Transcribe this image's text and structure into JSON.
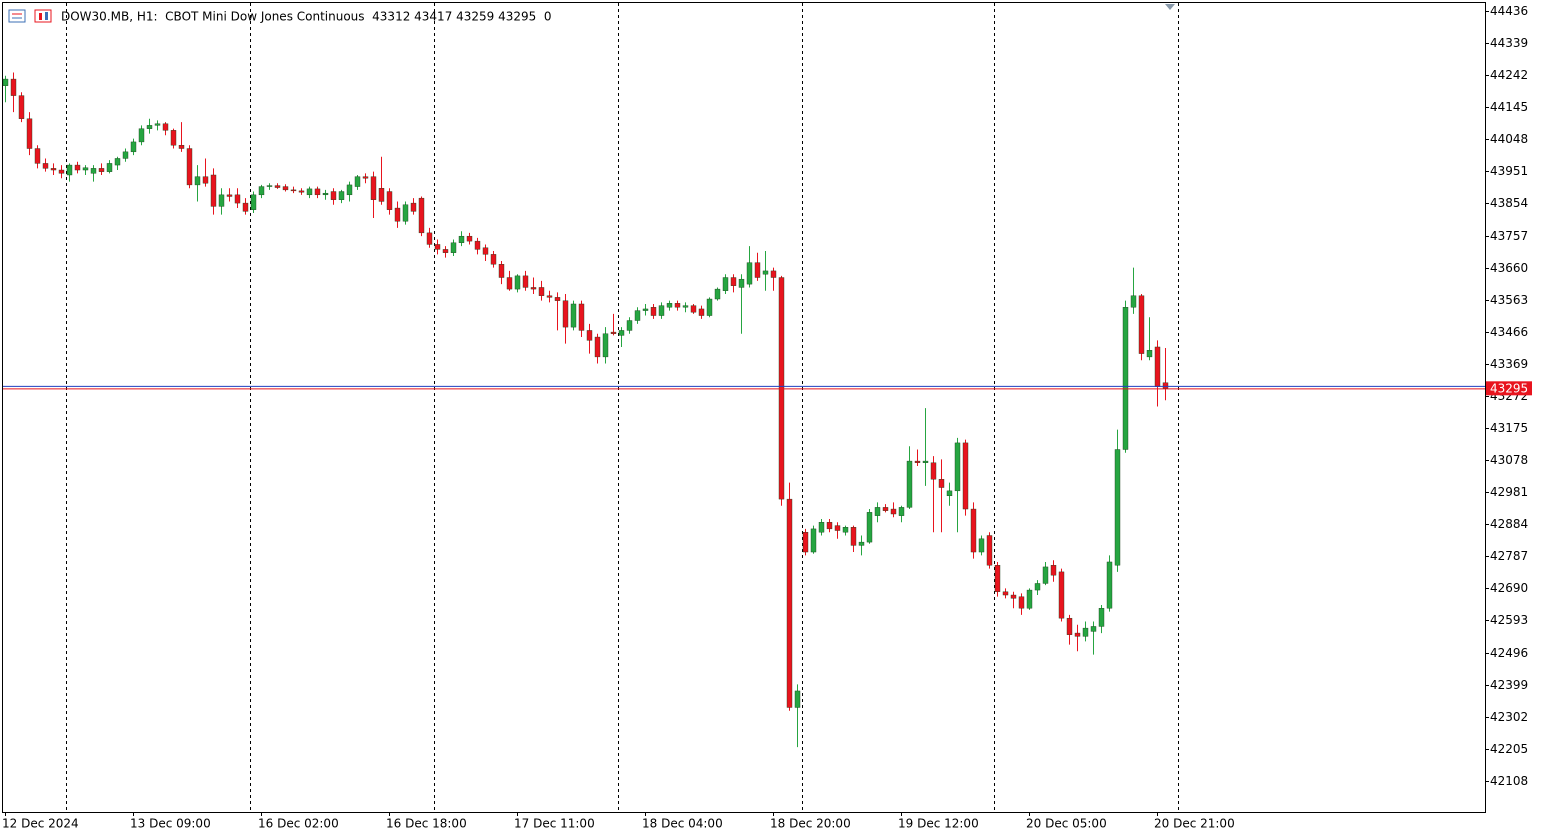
{
  "chart_data": {
    "type": "candlestick",
    "header": "DOW30.MB, H1:  CBOT Mini Dow Jones Continuous  43312 43417 43259 43295  0",
    "current_price": 43295,
    "up_color": "#26a541",
    "down_color": "#e8141e",
    "ylim": [
      42014,
      44460
    ],
    "yticks": [
      44436,
      44339,
      44242,
      44145,
      44048,
      43951,
      43854,
      43757,
      43660,
      43563,
      43466,
      43369,
      43272,
      43175,
      43078,
      42981,
      42884,
      42787,
      42690,
      42593,
      42496,
      42399,
      42302,
      42205,
      42108
    ],
    "categories": [
      "12 Dec 2024",
      null,
      null,
      null,
      null,
      null,
      null,
      null,
      null,
      null,
      null,
      null,
      null,
      null,
      null,
      null,
      "13 Dec 09:00",
      null,
      null,
      null,
      null,
      null,
      null,
      null,
      null,
      null,
      null,
      null,
      null,
      null,
      null,
      null,
      "16 Dec 02:00",
      null,
      null,
      null,
      null,
      null,
      null,
      null,
      null,
      null,
      null,
      null,
      null,
      null,
      null,
      null,
      "16 Dec 18:00",
      null,
      null,
      null,
      null,
      null,
      null,
      null,
      null,
      null,
      null,
      null,
      null,
      null,
      null,
      null,
      "17 Dec 11:00",
      null,
      null,
      null,
      null,
      null,
      null,
      null,
      null,
      null,
      null,
      null,
      null,
      null,
      null,
      null,
      "18 Dec 04:00",
      null,
      null,
      null,
      null,
      null,
      null,
      null,
      null,
      null,
      null,
      null,
      null,
      null,
      null,
      null,
      "18 Dec 20:00",
      null,
      null,
      null,
      null,
      null,
      null,
      null,
      null,
      null,
      null,
      null,
      null,
      null,
      null,
      null,
      "19 Dec 12:00",
      null,
      null,
      null,
      null,
      null,
      null,
      null,
      null,
      null,
      null,
      null,
      null,
      null,
      null,
      null,
      "20 Dec 05:00",
      null,
      null,
      null,
      null,
      null,
      null,
      null,
      null,
      null,
      null,
      null,
      null,
      null,
      null,
      null,
      "20 Dec 21:00",
      null
    ],
    "open": [
      44210,
      44230,
      44180,
      44110,
      44020,
      43975,
      43960,
      43955,
      43940,
      43970,
      43955,
      43945,
      43960,
      43950,
      43970,
      43990,
      44010,
      44040,
      44080,
      44090,
      44095,
      44075,
      44030,
      44020,
      43910,
      43935,
      43940,
      43845,
      43880,
      43880,
      43855,
      43835,
      43880,
      43905,
      43908,
      43905,
      43895,
      43892,
      43880,
      43898,
      43880,
      43890,
      43865,
      43880,
      43905,
      43935,
      43935,
      43900,
      43890,
      43840,
      43800,
      43855,
      43870,
      43765,
      43730,
      43715,
      43705,
      43735,
      43755,
      43740,
      43720,
      43700,
      43670,
      43630,
      43595,
      43635,
      43600,
      43600,
      43575,
      43570,
      43560,
      43480,
      43550,
      43470,
      43450,
      43390,
      43465,
      43455,
      43470,
      43500,
      43530,
      43540,
      43515,
      43540,
      43552,
      43540,
      43545,
      43535,
      43515,
      43565,
      43590,
      43630,
      43600,
      43610,
      43675,
      43640,
      43650,
      43630,
      42960,
      42330,
      42860,
      42800,
      42860,
      42890,
      42880,
      42860,
      42875,
      42820,
      42830,
      42910,
      42935,
      42930,
      42910,
      42935,
      43075,
      43070,
      43070,
      43020,
      42970,
      42985,
      43130,
      42930,
      42800,
      42850,
      42760,
      42680,
      42670,
      42665,
      42630,
      42685,
      42705,
      42760,
      42740,
      42600,
      42555,
      42545,
      42560,
      42575,
      42630,
      42760,
      43110,
      43540,
      43575,
      43390,
      43420,
      43312
    ],
    "high": [
      44240,
      44250,
      44190,
      44130,
      44030,
      43990,
      43975,
      43970,
      43975,
      43980,
      43970,
      43970,
      43975,
      43985,
      43995,
      44020,
      44050,
      44090,
      44110,
      44105,
      44100,
      44080,
      44100,
      44030,
      43970,
      43990,
      43960,
      43900,
      43900,
      43900,
      43870,
      43890,
      43910,
      43915,
      43915,
      43912,
      43905,
      43900,
      43905,
      43905,
      43895,
      43900,
      43895,
      43920,
      43940,
      43945,
      43950,
      43995,
      43900,
      43860,
      43860,
      43870,
      43875,
      43780,
      43745,
      43725,
      43745,
      43770,
      43765,
      43750,
      43730,
      43710,
      43680,
      43650,
      43640,
      43650,
      43630,
      43620,
      43590,
      43585,
      43580,
      43560,
      43560,
      43490,
      43460,
      43480,
      43520,
      43480,
      43510,
      43540,
      43550,
      43550,
      43555,
      43560,
      43560,
      43555,
      43550,
      43545,
      43570,
      43600,
      43640,
      43640,
      43640,
      43725,
      43705,
      43710,
      43660,
      43635,
      43010,
      42400,
      42870,
      42880,
      42900,
      42900,
      42890,
      42880,
      42880,
      42850,
      42930,
      42950,
      42945,
      42950,
      42940,
      43120,
      43110,
      43235,
      43090,
      43080,
      43010,
      43145,
      43140,
      42950,
      42850,
      42860,
      42770,
      42690,
      42680,
      42675,
      42690,
      42715,
      42770,
      42775,
      42750,
      42610,
      42580,
      42590,
      42590,
      42640,
      42790,
      43170,
      43560,
      43660,
      43580,
      43510,
      43440,
      43417
    ],
    "low": [
      44160,
      44130,
      44100,
      44000,
      43960,
      43950,
      43940,
      43930,
      43920,
      43945,
      43940,
      43920,
      43940,
      43945,
      43955,
      43980,
      44000,
      44030,
      44065,
      44075,
      44060,
      44020,
      44010,
      43900,
      43860,
      43905,
      43820,
      43820,
      43860,
      43840,
      43820,
      43825,
      43870,
      43895,
      43898,
      43890,
      43885,
      43880,
      43870,
      43870,
      43865,
      43850,
      43855,
      43860,
      43895,
      43915,
      43810,
      43850,
      43820,
      43780,
      43790,
      43820,
      43755,
      43720,
      43700,
      43690,
      43695,
      43725,
      43730,
      43700,
      43680,
      43660,
      43610,
      43590,
      43585,
      43590,
      43580,
      43560,
      43555,
      43470,
      43430,
      43470,
      43450,
      43400,
      43370,
      43370,
      43455,
      43420,
      43460,
      43490,
      43515,
      43505,
      43505,
      43530,
      43530,
      43525,
      43520,
      43505,
      43510,
      43560,
      43580,
      43585,
      43460,
      43600,
      43620,
      43590,
      43590,
      42940,
      42320,
      42210,
      42790,
      42795,
      42850,
      42860,
      42840,
      42850,
      42800,
      42790,
      42825,
      42890,
      42920,
      42905,
      42890,
      42930,
      43060,
      43000,
      42860,
      42860,
      42940,
      42860,
      42910,
      42780,
      42790,
      42750,
      42665,
      42660,
      42630,
      42610,
      42625,
      42670,
      42700,
      42710,
      42590,
      42520,
      42500,
      42530,
      42490,
      42555,
      42620,
      42740,
      43100,
      43520,
      43380,
      43380,
      43240,
      43259
    ],
    "close": [
      44230,
      44180,
      44110,
      44020,
      43975,
      43960,
      43955,
      43945,
      43970,
      43955,
      43962,
      43960,
      43950,
      43975,
      43990,
      44010,
      44040,
      44080,
      44090,
      44095,
      44075,
      44030,
      44020,
      43910,
      43935,
      43915,
      43845,
      43880,
      43875,
      43855,
      43830,
      43880,
      43905,
      43908,
      43902,
      43895,
      43892,
      43888,
      43898,
      43880,
      43885,
      43865,
      43890,
      43910,
      43935,
      43930,
      43865,
      43860,
      43835,
      43800,
      43850,
      43830,
      43765,
      43730,
      43715,
      43705,
      43735,
      43755,
      43740,
      43715,
      43700,
      43670,
      43630,
      43595,
      43635,
      43600,
      43595,
      43575,
      43570,
      43560,
      43480,
      43550,
      43470,
      43440,
      43390,
      43460,
      43460,
      43470,
      43500,
      43530,
      43535,
      43515,
      43545,
      43552,
      43540,
      43545,
      43525,
      43515,
      43565,
      43595,
      43630,
      43605,
      43625,
      43675,
      43630,
      43650,
      43630,
      42960,
      42330,
      42380,
      42800,
      42870,
      42890,
      42870,
      42865,
      42875,
      42820,
      42830,
      42920,
      42935,
      42925,
      42915,
      42935,
      43075,
      43070,
      43075,
      43020,
      42995,
      42985,
      43130,
      42930,
      42800,
      42840,
      42760,
      42680,
      42670,
      42660,
      42630,
      42685,
      42705,
      42755,
      42730,
      42600,
      42550,
      42545,
      42570,
      42575,
      42630,
      42770,
      43110,
      43540,
      43575,
      43400,
      43410,
      43300,
      43295
    ]
  }
}
